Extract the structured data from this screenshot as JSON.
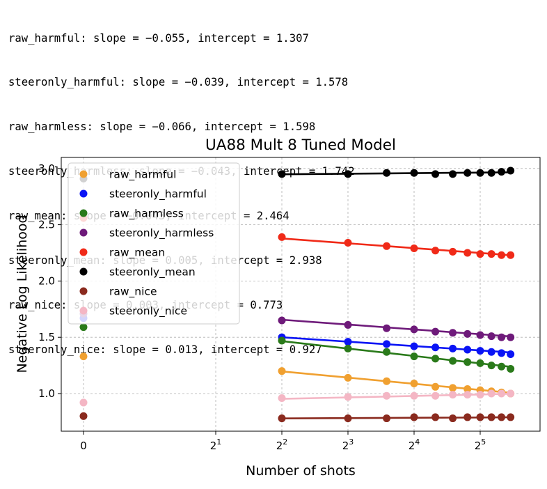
{
  "console_lines": [
    "raw_harmful: slope = −0.055, intercept = 1.307",
    "steeronly_harmful: slope = −0.039, intercept = 1.578",
    "raw_harmless: slope = −0.066, intercept = 1.598",
    "steeronly_harmless: slope = −0.043, intercept = 1.742",
    "raw_mean: slope = −0.043, intercept = 2.464",
    "steeronly_mean: slope = 0.005, intercept = 2.938",
    "raw_nice: slope = 0.003, intercept = 0.773",
    "steeronly_nice: slope = 0.013, intercept = 0.927"
  ],
  "chart_data": {
    "type": "scatter",
    "title": "UA88 Mult 8 Tuned Model",
    "xlabel": "Number of shots",
    "ylabel": "Negative Log Likelihood",
    "xscale": "symlog base 2",
    "xlim": [
      -0.2,
      46
    ],
    "ylim": [
      0.7,
      3.07
    ],
    "xticks": [
      {
        "value": 0,
        "base": "0",
        "exp": ""
      },
      {
        "value": 2,
        "base": "2",
        "exp": "1"
      },
      {
        "value": 4,
        "base": "2",
        "exp": "2"
      },
      {
        "value": 8,
        "base": "2",
        "exp": "3"
      },
      {
        "value": 16,
        "base": "2",
        "exp": "4"
      },
      {
        "value": 32,
        "base": "2",
        "exp": "5"
      }
    ],
    "yticks": [
      1.0,
      1.5,
      2.0,
      2.5,
      3.0
    ],
    "grid": true,
    "legend": "upper-left",
    "x": [
      4,
      8,
      12,
      16,
      20,
      24,
      28,
      32,
      36,
      40,
      44
    ],
    "series": [
      {
        "name": "raw_harmful",
        "color": "#f0a030",
        "zero": 1.33,
        "values": [
          1.2,
          1.14,
          1.11,
          1.09,
          1.06,
          1.05,
          1.04,
          1.03,
          1.02,
          1.01,
          1.0
        ],
        "fit": {
          "slope": -0.055,
          "intercept": 1.307
        }
      },
      {
        "name": "steeronly_harmful",
        "color": "#0a14f5",
        "zero": 1.67,
        "values": [
          1.5,
          1.46,
          1.44,
          1.42,
          1.41,
          1.4,
          1.39,
          1.38,
          1.37,
          1.36,
          1.35
        ],
        "fit": {
          "slope": -0.039,
          "intercept": 1.578
        }
      },
      {
        "name": "raw_harmless",
        "color": "#2a7a1a",
        "zero": 1.59,
        "values": [
          1.47,
          1.4,
          1.37,
          1.33,
          1.31,
          1.29,
          1.28,
          1.27,
          1.25,
          1.24,
          1.22
        ],
        "fit": {
          "slope": -0.066,
          "intercept": 1.598
        }
      },
      {
        "name": "steeronly_harmless",
        "color": "#6e1a7a",
        "zero": 1.71,
        "values": [
          1.65,
          1.61,
          1.58,
          1.57,
          1.55,
          1.54,
          1.53,
          1.52,
          1.51,
          1.5,
          1.5
        ],
        "fit": {
          "slope": -0.043,
          "intercept": 1.742
        }
      },
      {
        "name": "raw_mean",
        "color": "#f02a18",
        "zero": 2.56,
        "values": [
          2.39,
          2.34,
          2.31,
          2.29,
          2.27,
          2.26,
          2.25,
          2.24,
          2.24,
          2.23,
          2.23
        ],
        "fit": {
          "slope": -0.043,
          "intercept": 2.464
        }
      },
      {
        "name": "steeronly_mean",
        "color": "#000000",
        "zero": 2.91,
        "values": [
          2.95,
          2.95,
          2.96,
          2.96,
          2.95,
          2.95,
          2.96,
          2.96,
          2.96,
          2.97,
          2.98
        ],
        "fit": {
          "slope": 0.005,
          "intercept": 2.938
        }
      },
      {
        "name": "raw_nice",
        "color": "#8a2a1e",
        "zero": 0.8,
        "values": [
          0.78,
          0.78,
          0.78,
          0.79,
          0.79,
          0.78,
          0.79,
          0.79,
          0.79,
          0.79,
          0.79
        ],
        "fit": {
          "slope": 0.003,
          "intercept": 0.773
        }
      },
      {
        "name": "steeronly_nice",
        "color": "#f4b6c4",
        "zero": 0.92,
        "values": [
          0.96,
          0.97,
          0.98,
          0.98,
          0.98,
          0.99,
          0.99,
          0.99,
          1.0,
          1.0,
          1.0
        ],
        "fit": {
          "slope": 0.013,
          "intercept": 0.927
        }
      }
    ]
  }
}
